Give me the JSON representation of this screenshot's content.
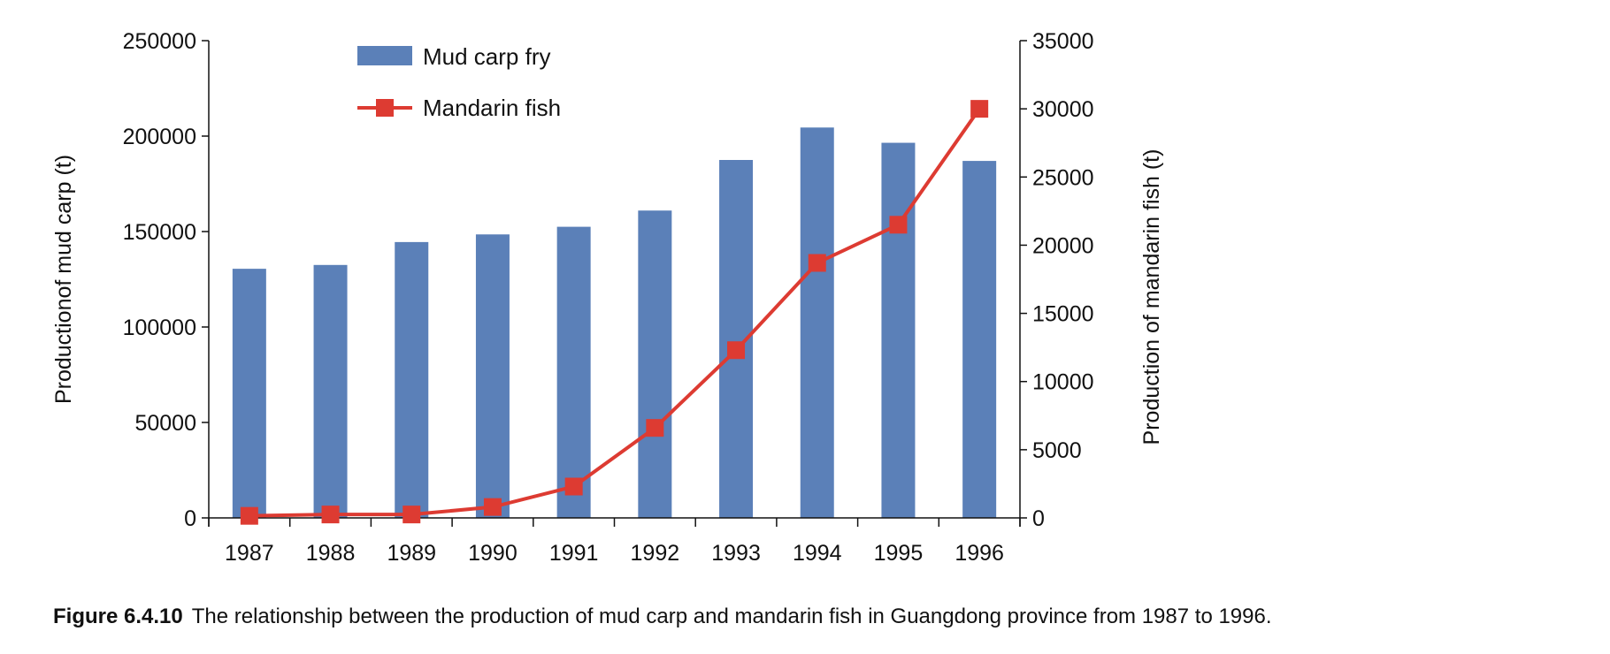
{
  "chart_data": {
    "type": "bar+line",
    "categories": [
      "1987",
      "1988",
      "1989",
      "1990",
      "1991",
      "1992",
      "1993",
      "1994",
      "1995",
      "1996"
    ],
    "series": [
      {
        "name": "Mud carp fry",
        "type": "bar",
        "axis": "left",
        "color": "#5b80b8",
        "values": [
          130500,
          132500,
          144500,
          148500,
          152500,
          161000,
          187500,
          204500,
          196500,
          187000
        ]
      },
      {
        "name": "Mandarin fish",
        "type": "line",
        "axis": "right",
        "color": "#dd3b32",
        "values": [
          150,
          250,
          250,
          800,
          2300,
          6600,
          12300,
          18700,
          21500,
          30000
        ]
      }
    ],
    "ylabel": "Productionof mud carp (t)",
    "y2label": "Production of mandarin fish (t)",
    "ylim": [
      0,
      250000
    ],
    "y2lim": [
      0,
      35000
    ],
    "yticks": [
      "0",
      "50000",
      "100000",
      "150000",
      "200000",
      "250000"
    ],
    "y2ticks": [
      "0",
      "5000",
      "10000",
      "15000",
      "20000",
      "25000",
      "30000",
      "35000"
    ],
    "legend": "top-left",
    "grid": false
  },
  "caption": {
    "label": "Figure 6.4.10",
    "text": "The relationship between the production of mud carp and mandarin fish in Guangdong province from 1987 to 1996."
  }
}
